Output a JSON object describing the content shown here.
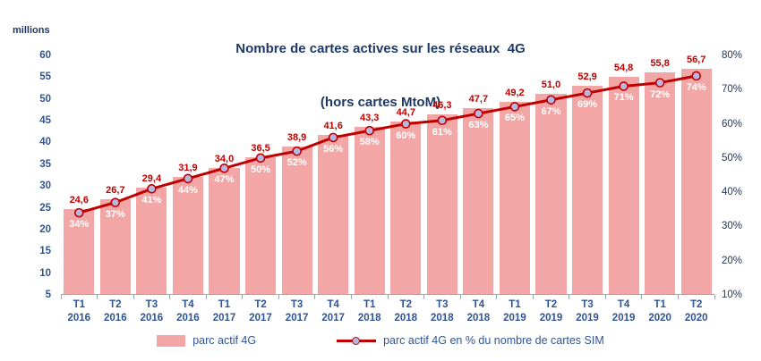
{
  "title": {
    "line1": "Nombre de cartes actives sur les réseaux  4G",
    "line2": "(hors cartes MtoM)"
  },
  "y_axis_left": {
    "unit": "millions"
  },
  "colors": {
    "bar_fill": "#F2A6A6",
    "line": "#C00000",
    "marker_fill": "#B9B7E0",
    "bar_value_label": "#C00000",
    "axis_label_blue": "#2F5496",
    "title_navy": "#1F3864"
  },
  "chart_data": {
    "type": "bar",
    "title": "Nombre de cartes actives sur les réseaux 4G (hors cartes MtoM)",
    "categories": [
      [
        "T1",
        "2016"
      ],
      [
        "T2",
        "2016"
      ],
      [
        "T3",
        "2016"
      ],
      [
        "T4",
        "2016"
      ],
      [
        "T1",
        "2017"
      ],
      [
        "T2",
        "2017"
      ],
      [
        "T3",
        "2017"
      ],
      [
        "T4",
        "2017"
      ],
      [
        "T1",
        "2018"
      ],
      [
        "T2",
        "2018"
      ],
      [
        "T3",
        "2018"
      ],
      [
        "T4",
        "2018"
      ],
      [
        "T1",
        "2019"
      ],
      [
        "T2",
        "2019"
      ],
      [
        "T3",
        "2019"
      ],
      [
        "T4",
        "2019"
      ],
      [
        "T1",
        "2020"
      ],
      [
        "T2",
        "2020"
      ]
    ],
    "series": [
      {
        "name": "parc actif 4G",
        "type": "bar",
        "axis": "left",
        "values": [
          24.6,
          26.7,
          29.4,
          31.9,
          34.0,
          36.5,
          38.9,
          41.6,
          43.3,
          44.7,
          46.3,
          47.7,
          49.2,
          51.0,
          52.9,
          54.8,
          55.8,
          56.7
        ],
        "labels": [
          "24,6",
          "26,7",
          "29,4",
          "31,9",
          "34,0",
          "36,5",
          "38,9",
          "41,6",
          "43,3",
          "44,7",
          "46,3",
          "47,7",
          "49,2",
          "51,0",
          "52,9",
          "54,8",
          "55,8",
          "56,7"
        ]
      },
      {
        "name": "parc actif 4G en % du nombre de cartes SIM",
        "type": "line",
        "axis": "right",
        "values": [
          34,
          37,
          41,
          44,
          47,
          50,
          52,
          56,
          58,
          60,
          61,
          63,
          65,
          67,
          69,
          71,
          72,
          74
        ],
        "labels": [
          "34%",
          "37%",
          "41%",
          "44%",
          "47%",
          "50%",
          "52%",
          "56%",
          "58%",
          "60%",
          "61%",
          "63%",
          "65%",
          "67%",
          "69%",
          "71%",
          "72%",
          "74%"
        ]
      }
    ],
    "ylim_left": [
      5,
      60
    ],
    "ylim_right": [
      10,
      80
    ],
    "y_left_ticks": [
      "60",
      "55",
      "50",
      "45",
      "40",
      "35",
      "30",
      "25",
      "20",
      "15",
      "10",
      "5"
    ],
    "y_right_ticks": [
      "80%",
      "70%",
      "60%",
      "50%",
      "40%",
      "30%",
      "20%",
      "10%"
    ],
    "y_left_unit": "millions",
    "grid": false,
    "legend_position": "bottom"
  }
}
